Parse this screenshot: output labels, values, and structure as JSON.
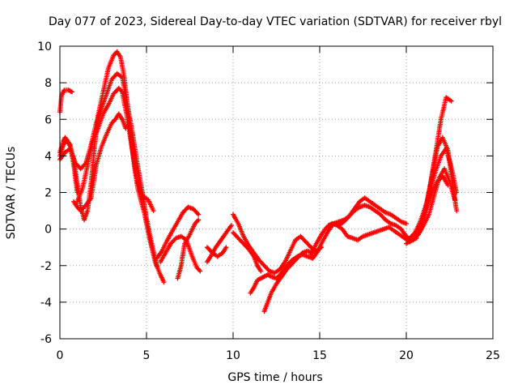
{
  "chart_data": {
    "type": "scatter",
    "title": "Day 077 of 2023, Sidereal Day-to-day VTEC variation (SDTVAR) for receiver rbyl",
    "xlabel": "GPS time / hours",
    "ylabel": "SDTVAR / TECUs",
    "xlim": [
      0,
      25
    ],
    "ylim": [
      -6,
      10
    ],
    "xticks": [
      "0",
      "5",
      "10",
      "15",
      "20",
      "25"
    ],
    "yticks": [
      "-6",
      "-4",
      "-2",
      "0",
      "2",
      "4",
      "6",
      "8",
      "10"
    ],
    "grid": true,
    "marker": "+",
    "color": "#ff0000",
    "series": [
      {
        "name": "s1",
        "x": [
          0.0,
          0.1,
          0.25,
          0.5,
          0.7
        ],
        "y": [
          6.4,
          7.3,
          7.6,
          7.6,
          7.5
        ]
      },
      {
        "name": "s2",
        "x": [
          0.0,
          0.2,
          0.3,
          0.6,
          0.8,
          1.0
        ],
        "y": [
          4.2,
          4.8,
          5.0,
          4.6,
          3.5,
          2.0
        ]
      },
      {
        "name": "s3",
        "x": [
          0.0,
          0.2,
          0.4,
          0.6,
          0.8,
          1.0,
          1.2,
          1.4,
          1.6,
          1.8,
          2.0,
          2.2,
          2.5,
          2.8,
          3.1,
          3.3,
          3.5,
          3.7,
          3.9,
          4.1,
          4.3,
          4.5,
          4.7,
          4.9,
          5.1,
          5.3,
          5.5,
          5.8,
          6.0
        ],
        "y": [
          4.0,
          4.6,
          4.9,
          4.5,
          3.8,
          2.5,
          1.2,
          0.5,
          1.0,
          2.5,
          4.5,
          6.2,
          7.5,
          8.8,
          9.5,
          9.7,
          9.4,
          8.4,
          6.8,
          5.0,
          3.4,
          2.2,
          1.5,
          0.8,
          -0.2,
          -1.0,
          -1.8,
          -2.5,
          -2.9
        ]
      },
      {
        "name": "s4",
        "x": [
          0.0,
          0.3,
          0.6,
          0.9,
          1.2,
          1.5,
          1.8,
          2.1,
          2.4,
          2.7,
          3.0,
          3.3,
          3.6,
          3.9,
          4.2,
          4.5,
          4.8,
          5.1,
          5.4
        ],
        "y": [
          3.8,
          4.2,
          4.4,
          3.6,
          3.3,
          3.6,
          4.6,
          5.8,
          6.6,
          7.4,
          8.2,
          8.5,
          8.3,
          6.8,
          5.2,
          3.4,
          1.8,
          1.6,
          1.0
        ]
      },
      {
        "name": "s5",
        "x": [
          1.0,
          1.3,
          1.6,
          1.9,
          2.2,
          2.5,
          2.8,
          3.1,
          3.4,
          3.6,
          3.9,
          4.2,
          4.5,
          4.8,
          5.0,
          5.3,
          5.6
        ],
        "y": [
          1.5,
          2.2,
          3.5,
          4.8,
          5.5,
          6.3,
          6.8,
          7.4,
          7.7,
          7.5,
          6.0,
          4.2,
          2.5,
          1.8,
          0.6,
          -0.8,
          -2.0
        ]
      },
      {
        "name": "s6",
        "x": [
          0.8,
          1.0,
          1.2,
          1.5,
          1.8,
          2.1,
          2.4,
          2.7,
          3.0,
          3.2,
          3.4,
          3.6,
          3.8
        ],
        "y": [
          1.5,
          1.2,
          1.0,
          1.3,
          1.7,
          3.5,
          4.5,
          5.2,
          5.8,
          6.0,
          6.3,
          6.0,
          5.5
        ]
      },
      {
        "name": "s7",
        "x": [
          5.6,
          5.9,
          6.2,
          6.5,
          6.8,
          7.1,
          7.4,
          7.7,
          8.0
        ],
        "y": [
          -1.6,
          -1.2,
          -0.6,
          -0.1,
          0.4,
          0.9,
          1.2,
          1.1,
          0.8
        ]
      },
      {
        "name": "s8",
        "x": [
          5.8,
          6.1,
          6.4,
          6.7,
          7.0,
          7.3,
          7.6,
          7.9,
          8.1
        ],
        "y": [
          -1.8,
          -1.3,
          -0.8,
          -0.5,
          -0.4,
          -0.6,
          -1.4,
          -2.1,
          -2.3
        ]
      },
      {
        "name": "s9",
        "x": [
          6.8,
          7.0,
          7.2,
          7.5,
          7.8,
          8.0
        ],
        "y": [
          -2.7,
          -2.0,
          -0.8,
          -0.3,
          0.3,
          0.5
        ]
      },
      {
        "name": "s10",
        "x": [
          8.5,
          8.7,
          9.0,
          9.3,
          9.6,
          9.9
        ],
        "y": [
          -1.8,
          -1.5,
          -1.0,
          -0.6,
          -0.2,
          0.2
        ]
      },
      {
        "name": "s11",
        "x": [
          8.5,
          8.8,
          9.1,
          9.4,
          9.6
        ],
        "y": [
          -1.0,
          -1.3,
          -1.5,
          -1.3,
          -1.0
        ]
      },
      {
        "name": "s12",
        "x": [
          10.0,
          10.3,
          10.6,
          10.9,
          11.2,
          11.5,
          11.8,
          12.1,
          12.4,
          12.7,
          13.0,
          13.3,
          13.6,
          13.9,
          14.2,
          14.5,
          14.8,
          15.1
        ],
        "y": [
          0.8,
          0.3,
          -0.4,
          -0.9,
          -1.3,
          -1.7,
          -2.0,
          -2.3,
          -2.4,
          -2.2,
          -1.8,
          -1.2,
          -0.6,
          -0.4,
          -0.7,
          -1.0,
          -1.2,
          -1.0
        ]
      },
      {
        "name": "s13",
        "x": [
          10.0,
          10.3,
          10.6,
          10.9,
          11.2,
          11.4,
          11.6
        ],
        "y": [
          -0.2,
          -0.5,
          -0.8,
          -1.1,
          -1.5,
          -2.0,
          -2.3
        ]
      },
      {
        "name": "s14",
        "x": [
          11.0,
          11.2,
          11.4,
          11.6,
          11.8,
          12.0,
          12.2,
          12.5,
          12.8,
          13.1,
          13.4,
          13.7,
          14.0,
          14.3,
          14.6,
          14.9,
          15.2,
          15.5,
          15.8,
          16.1,
          16.4,
          16.7,
          17.0,
          17.3,
          17.6,
          17.9,
          18.2,
          18.5,
          18.8,
          19.1,
          19.4,
          19.7,
          20.0,
          20.3,
          20.6
        ],
        "y": [
          -3.5,
          -3.2,
          -2.8,
          -2.7,
          -2.6,
          -2.5,
          -2.6,
          -2.7,
          -2.4,
          -2.0,
          -1.7,
          -1.5,
          -1.4,
          -1.5,
          -1.6,
          -1.2,
          -0.6,
          -0.1,
          0.3,
          0.4,
          0.5,
          0.7,
          1.0,
          1.2,
          1.3,
          1.2,
          1.0,
          0.8,
          0.5,
          0.3,
          0.2,
          0.0,
          -0.4,
          -0.6,
          -0.5
        ]
      },
      {
        "name": "s15",
        "x": [
          11.8,
          12.0,
          12.2,
          12.5,
          12.8,
          13.1,
          13.4,
          13.7,
          14.0,
          14.3,
          14.6
        ],
        "y": [
          -4.5,
          -4.0,
          -3.5,
          -3.0,
          -2.6,
          -2.2,
          -1.9,
          -1.6,
          -1.3,
          -1.2,
          -1.3
        ]
      },
      {
        "name": "s16",
        "x": [
          14.5,
          14.8,
          15.1,
          15.4,
          15.7,
          16.0,
          16.3,
          16.6,
          16.9,
          17.2,
          17.5,
          17.8,
          18.1,
          18.4,
          18.7,
          19.0,
          19.3,
          19.6,
          19.9,
          20.2,
          20.5,
          20.8,
          21.1,
          21.4,
          21.7,
          22.0,
          22.3,
          22.6
        ],
        "y": [
          -1.4,
          -0.8,
          -0.3,
          0.1,
          0.3,
          0.2,
          0.0,
          -0.4,
          -0.5,
          -0.6,
          -0.4,
          -0.3,
          -0.2,
          -0.1,
          0.0,
          0.1,
          -0.1,
          -0.3,
          -0.5,
          -0.7,
          -0.5,
          0.0,
          1.0,
          2.5,
          4.2,
          6.0,
          7.2,
          7.0
        ]
      },
      {
        "name": "s17",
        "x": [
          15.5,
          15.8,
          16.1,
          16.4,
          16.7,
          17.0,
          17.3,
          17.6,
          17.9,
          18.2,
          18.5,
          18.8,
          19.1,
          19.4,
          19.7,
          20.0
        ],
        "y": [
          0.2,
          0.3,
          0.2,
          0.4,
          0.7,
          1.1,
          1.5,
          1.7,
          1.5,
          1.3,
          1.1,
          0.9,
          0.8,
          0.6,
          0.4,
          0.3
        ]
      },
      {
        "name": "s18",
        "x": [
          20.0,
          20.3,
          20.6,
          20.9,
          21.2,
          21.5,
          21.8,
          22.1,
          22.4,
          22.7,
          22.9
        ],
        "y": [
          -0.8,
          -0.6,
          -0.3,
          0.3,
          1.5,
          3.0,
          4.5,
          5.0,
          4.3,
          2.3,
          1.0
        ]
      },
      {
        "name": "s19",
        "x": [
          20.2,
          20.5,
          20.8,
          21.1,
          21.4,
          21.7,
          22.0,
          22.3,
          22.6,
          22.9
        ],
        "y": [
          -0.5,
          -0.2,
          0.4,
          1.2,
          2.2,
          3.2,
          4.0,
          4.4,
          3.4,
          2.0
        ]
      },
      {
        "name": "s20",
        "x": [
          20.4,
          20.7,
          21.0,
          21.3,
          21.6,
          21.9,
          22.2,
          22.5,
          22.8
        ],
        "y": [
          -0.6,
          -0.3,
          0.2,
          0.8,
          1.8,
          2.8,
          3.3,
          2.6,
          1.6
        ]
      },
      {
        "name": "s21",
        "x": [
          20.6,
          20.9,
          21.2,
          21.5,
          21.8,
          22.1,
          22.4
        ],
        "y": [
          -0.2,
          0.5,
          1.3,
          2.0,
          2.6,
          2.9,
          2.4
        ]
      }
    ]
  }
}
